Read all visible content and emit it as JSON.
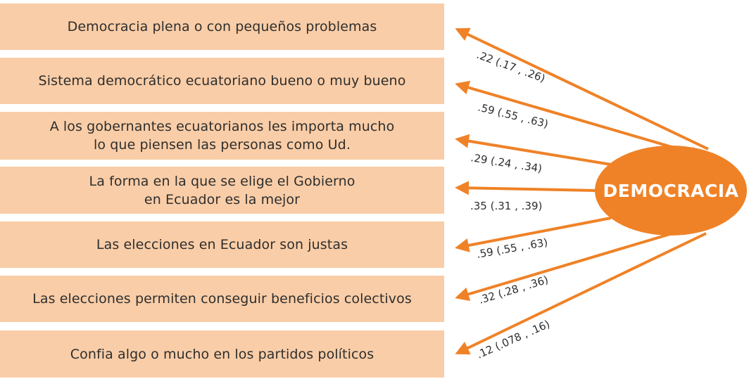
{
  "colors": {
    "box_fill": "#f9cda7",
    "accent": "#ef8227",
    "text": "#2e2e2e"
  },
  "factor": {
    "label": "DEMOCRACIA"
  },
  "indicators": [
    {
      "label": "Democracia plena o con pequeños problemas",
      "coefficient": ".22 (.17 , .26)"
    },
    {
      "label": "Sistema democrático ecuatoriano bueno o muy bueno",
      "coefficient": ".59 (.55 , .63)"
    },
    {
      "label": "A los gobernantes ecuatorianos les importa mucho\nlo que piensen las personas como Ud.",
      "coefficient": ".29 (.24 , .34)"
    },
    {
      "label": "La forma en la que se elige el Gobierno\nen Ecuador es la mejor",
      "coefficient": ".35 (.31 , .39)"
    },
    {
      "label": "Las elecciones en Ecuador son justas",
      "coefficient": ".59 (.55 , .63)"
    },
    {
      "label": "Las elecciones permiten conseguir beneficios colectivos",
      "coefficient": ".32 (.28 , .36)"
    },
    {
      "label": "Confia algo o mucho en los partidos políticos",
      "coefficient": ".12 (.078 , .16)"
    }
  ]
}
